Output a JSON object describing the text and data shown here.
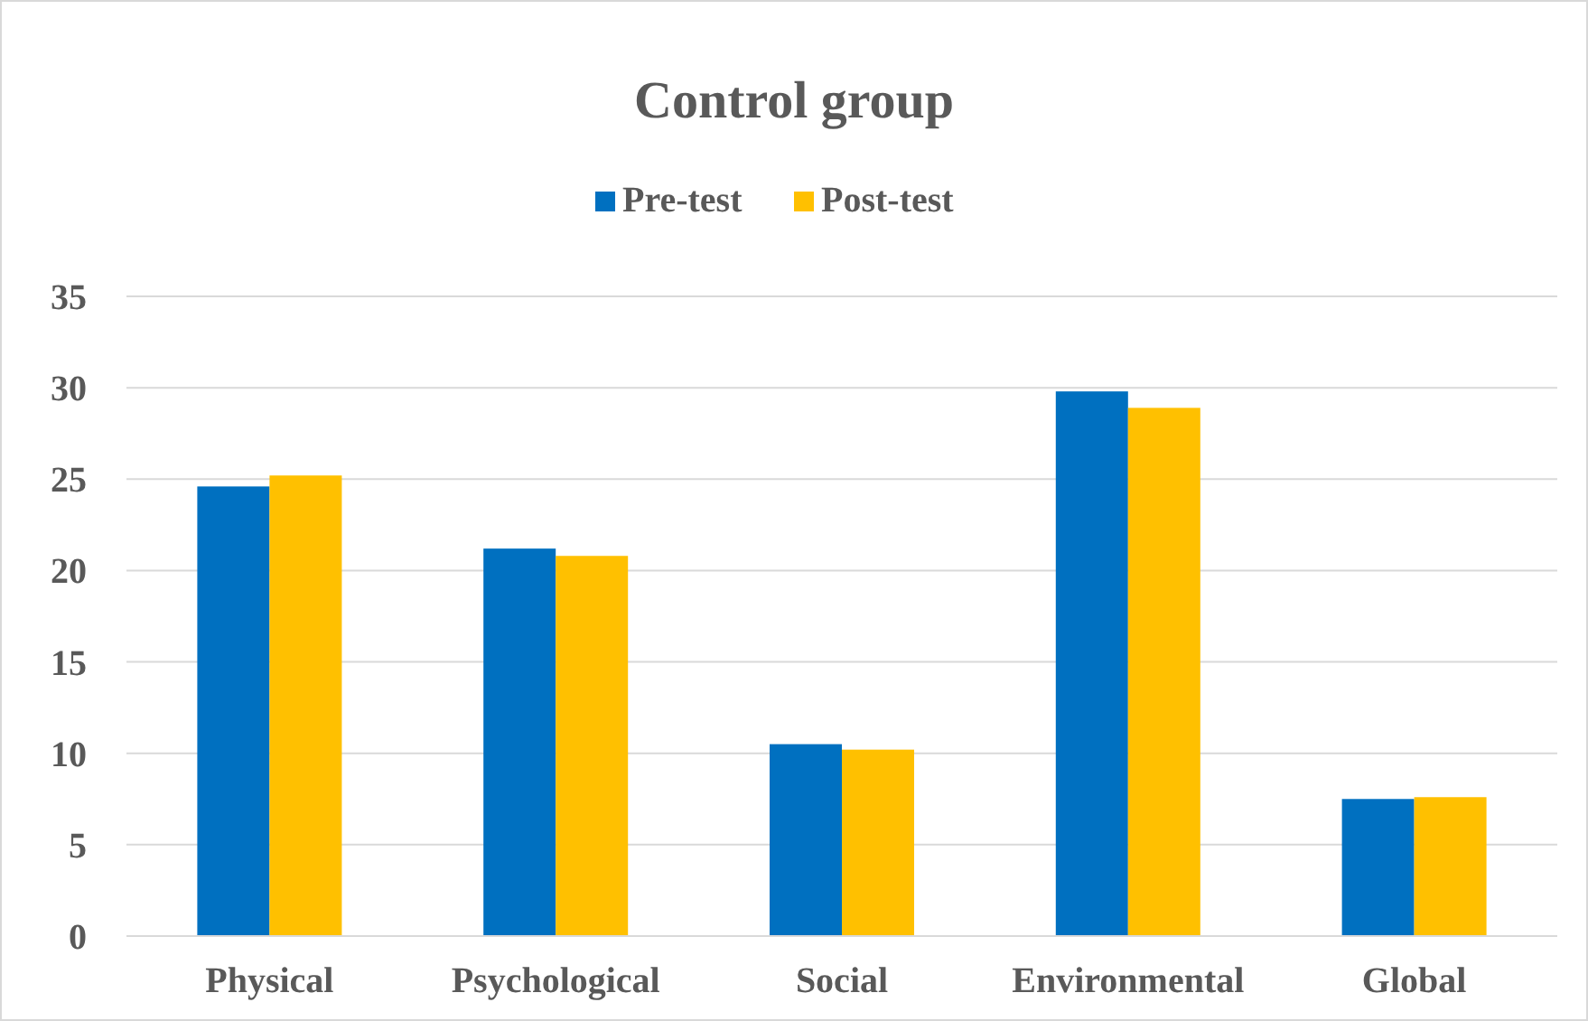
{
  "chart_data": {
    "type": "bar",
    "title": "Control group",
    "categories": [
      "Physical",
      "Psychological",
      "Social",
      "Environmental",
      "Global"
    ],
    "series": [
      {
        "name": "Pre-test",
        "color": "#0070c0",
        "values": [
          24.6,
          21.2,
          10.5,
          29.8,
          7.5
        ]
      },
      {
        "name": "Post-test",
        "color": "#ffc000",
        "values": [
          25.2,
          20.8,
          10.2,
          28.9,
          7.6
        ]
      }
    ],
    "ylim": [
      0,
      35
    ],
    "yticks": [
      0,
      5,
      10,
      15,
      20,
      25,
      30,
      35
    ],
    "grid": "y",
    "legend": "top"
  }
}
